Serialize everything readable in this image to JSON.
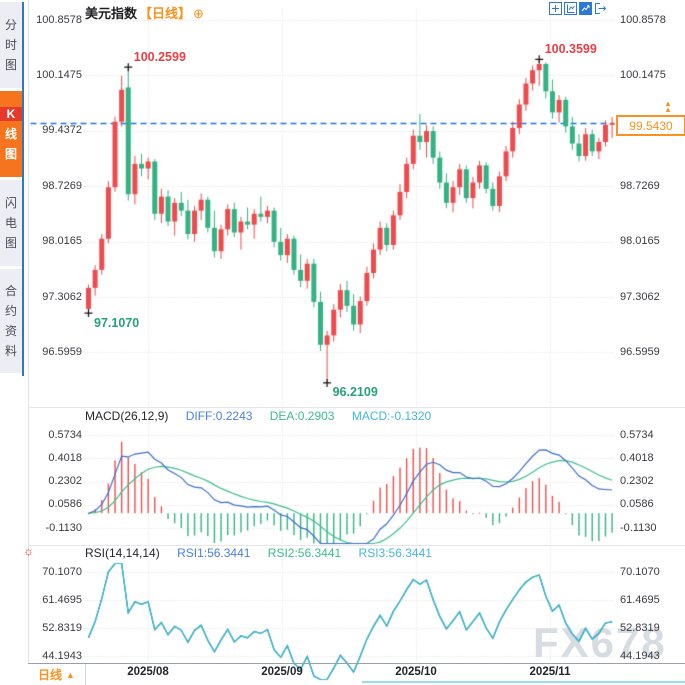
{
  "sidebar": {
    "tabs": [
      {
        "label": "分时图",
        "active": false
      },
      {
        "label": "K线图",
        "active": true
      },
      {
        "label": "闪电图",
        "active": false
      },
      {
        "label": "合约资料",
        "active": false
      }
    ]
  },
  "title": {
    "symbol": "美元指数",
    "interval_tag": "【日线】",
    "plus_icon": "⊕"
  },
  "toolbar": {
    "icons": [
      "crosshair",
      "axis-scale",
      "indicator-chart",
      "pop-out"
    ]
  },
  "current_price": "99.5430",
  "bottom_bar": {
    "interval_label": "日线",
    "dropdown_arrow": "▲"
  },
  "watermark": "FX678",
  "colors": {
    "up": "#ee4b4e",
    "down": "#33b283",
    "anno_high": "#e83f45",
    "anno_low": "#27a277",
    "dashed_line": "#1a73e8",
    "accent_orange": "#f7931e",
    "grid": "#dcdcdc",
    "diff_line": "#3b6fca",
    "dea_line": "#3fbd8e",
    "rsi_lines": [
      "#4a7bd0",
      "#46bd8f",
      "#3fb3d6"
    ],
    "hist_pos": "#e8504f",
    "hist_neg": "#35b185",
    "cross_marker": "#111111"
  },
  "chart_data": {
    "type": "candlestick",
    "title": "美元指数 日线",
    "y_ticks": [
      "100.8578",
      "100.1475",
      "99.4372",
      "98.7269",
      "98.0165",
      "97.3062",
      "96.5959"
    ],
    "x_ticks": [
      "2025/08",
      "2025/09",
      "2025/10",
      "2025/11"
    ],
    "current_price": "99.5430",
    "annotations": [
      {
        "value": "100.2599",
        "candle": 6,
        "side": "high"
      },
      {
        "value": "100.3599",
        "candle": 68,
        "side": "high"
      },
      {
        "value": "97.1070",
        "candle": 0,
        "side": "low"
      },
      {
        "value": "96.2109",
        "candle": 36,
        "side": "low"
      }
    ],
    "candles": [
      [
        97.16,
        97.47,
        97.107,
        97.43
      ],
      [
        97.43,
        97.72,
        97.33,
        97.66
      ],
      [
        97.66,
        98.12,
        97.6,
        98.06
      ],
      [
        98.06,
        98.8,
        98.0,
        98.72
      ],
      [
        98.72,
        99.62,
        98.66,
        99.56
      ],
      [
        99.56,
        100.15,
        99.5,
        99.97
      ],
      [
        100.0,
        100.2599,
        98.55,
        98.63
      ],
      [
        98.63,
        99.12,
        98.5,
        99.02
      ],
      [
        99.02,
        99.15,
        98.86,
        98.96
      ],
      [
        98.96,
        99.1,
        98.82,
        99.05
      ],
      [
        99.05,
        99.08,
        98.3,
        98.38
      ],
      [
        98.38,
        98.7,
        98.26,
        98.6
      ],
      [
        98.6,
        98.68,
        98.22,
        98.28
      ],
      [
        98.28,
        98.58,
        98.1,
        98.52
      ],
      [
        98.52,
        98.66,
        98.35,
        98.42
      ],
      [
        98.42,
        98.56,
        98.05,
        98.12
      ],
      [
        98.12,
        98.48,
        98.02,
        98.42
      ],
      [
        98.42,
        98.64,
        98.3,
        98.56
      ],
      [
        98.56,
        98.6,
        98.14,
        98.2
      ],
      [
        98.2,
        98.42,
        97.82,
        97.9
      ],
      [
        97.9,
        98.24,
        97.8,
        98.18
      ],
      [
        98.18,
        98.5,
        98.1,
        98.44
      ],
      [
        98.44,
        98.52,
        98.08,
        98.14
      ],
      [
        98.14,
        98.34,
        97.92,
        98.28
      ],
      [
        98.28,
        98.46,
        98.18,
        98.24
      ],
      [
        98.24,
        98.44,
        98.06,
        98.38
      ],
      [
        98.38,
        98.6,
        98.28,
        98.34
      ],
      [
        98.34,
        98.48,
        98.26,
        98.42
      ],
      [
        98.42,
        98.46,
        97.95,
        98.02
      ],
      [
        98.02,
        98.2,
        97.78,
        97.85
      ],
      [
        97.85,
        98.12,
        97.75,
        98.06
      ],
      [
        98.06,
        98.1,
        97.6,
        97.66
      ],
      [
        97.66,
        97.86,
        97.44,
        97.52
      ],
      [
        97.52,
        97.8,
        97.42,
        97.74
      ],
      [
        97.74,
        97.8,
        97.18,
        97.25
      ],
      [
        97.25,
        97.38,
        96.62,
        96.7
      ],
      [
        96.7,
        96.88,
        96.2109,
        96.82
      ],
      [
        96.82,
        97.22,
        96.74,
        97.15
      ],
      [
        97.15,
        97.48,
        97.05,
        97.4
      ],
      [
        97.4,
        97.52,
        97.12,
        97.2
      ],
      [
        97.2,
        97.35,
        96.88,
        96.96
      ],
      [
        96.96,
        97.32,
        96.85,
        97.26
      ],
      [
        97.26,
        97.7,
        97.2,
        97.62
      ],
      [
        97.62,
        98.0,
        97.55,
        97.92
      ],
      [
        97.92,
        98.28,
        97.85,
        98.2
      ],
      [
        98.2,
        98.26,
        97.9,
        97.98
      ],
      [
        97.98,
        98.42,
        97.92,
        98.36
      ],
      [
        98.36,
        98.76,
        98.3,
        98.66
      ],
      [
        98.66,
        99.1,
        98.58,
        99.02
      ],
      [
        99.02,
        99.46,
        98.95,
        99.38
      ],
      [
        99.38,
        99.66,
        99.2,
        99.3
      ],
      [
        99.3,
        99.52,
        99.1,
        99.44
      ],
      [
        99.44,
        99.5,
        99.02,
        99.1
      ],
      [
        99.1,
        99.18,
        98.7,
        98.78
      ],
      [
        98.78,
        98.9,
        98.45,
        98.52
      ],
      [
        98.52,
        98.8,
        98.4,
        98.72
      ],
      [
        98.72,
        99.02,
        98.62,
        98.95
      ],
      [
        98.95,
        99.0,
        98.52,
        98.58
      ],
      [
        98.58,
        98.85,
        98.45,
        98.78
      ],
      [
        98.78,
        99.06,
        98.7,
        99.0
      ],
      [
        99.0,
        99.04,
        98.64,
        98.7
      ],
      [
        98.7,
        98.78,
        98.42,
        98.48
      ],
      [
        98.48,
        98.92,
        98.4,
        98.86
      ],
      [
        98.86,
        99.25,
        98.8,
        99.18
      ],
      [
        99.18,
        99.56,
        99.1,
        99.48
      ],
      [
        99.48,
        99.85,
        99.4,
        99.78
      ],
      [
        99.78,
        100.12,
        99.7,
        100.05
      ],
      [
        100.05,
        100.28,
        99.96,
        100.22
      ],
      [
        100.22,
        100.3599,
        100.02,
        100.3
      ],
      [
        100.3,
        100.32,
        99.86,
        99.95
      ],
      [
        99.95,
        100.1,
        99.6,
        99.68
      ],
      [
        99.68,
        99.9,
        99.55,
        99.84
      ],
      [
        99.84,
        99.88,
        99.42,
        99.5
      ],
      [
        99.5,
        99.62,
        99.2,
        99.28
      ],
      [
        99.28,
        99.4,
        99.05,
        99.12
      ],
      [
        99.12,
        99.48,
        99.06,
        99.4
      ],
      [
        99.4,
        99.46,
        99.12,
        99.18
      ],
      [
        99.18,
        99.35,
        99.08,
        99.3
      ],
      [
        99.3,
        99.58,
        99.24,
        99.52
      ],
      [
        99.52,
        99.62,
        99.35,
        99.543
      ]
    ],
    "indicators": {
      "macd": {
        "label": "MACD(26,12,9)",
        "diff_label": "DIFF:0.2243",
        "dea_label": "DEA:0.2903",
        "macd_label": "MACD:-0.1320",
        "params": [
          26,
          12,
          9
        ],
        "y_ticks": [
          "0.5734",
          "0.4018",
          "0.2302",
          "0.0586",
          "-0.1130"
        ]
      },
      "rsi": {
        "label": "RSI(14,14,14)",
        "rsi1_label": "RSI1:56.3441",
        "rsi2_label": "RSI2:56.3441",
        "rsi3_label": "RSI3:56.3441",
        "params": [
          14,
          14,
          14
        ],
        "y_ticks": [
          "70.1070",
          "61.4695",
          "52.8319",
          "44.1943"
        ]
      }
    }
  }
}
